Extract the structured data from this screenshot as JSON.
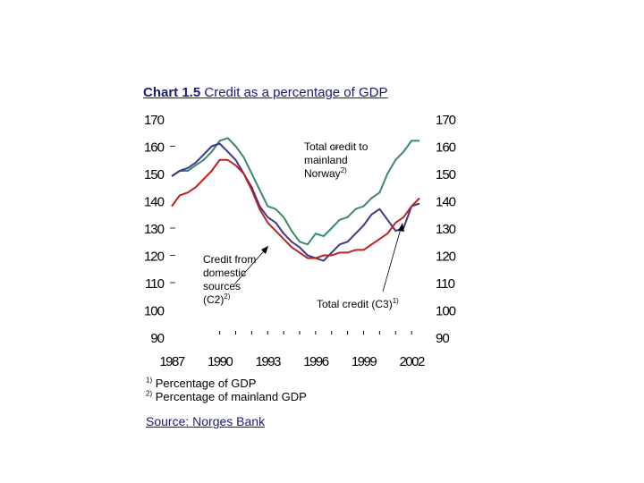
{
  "chart_data": {
    "type": "line",
    "title_bold": "Chart 1.5",
    "title_rest": "Credit as a percentage of GDP",
    "ylim": [
      90,
      170
    ],
    "yticks": [
      90,
      100,
      110,
      120,
      130,
      140,
      150,
      160,
      170
    ],
    "xlim": [
      1987,
      2003
    ],
    "xticks": [
      1987,
      1990,
      1993,
      1996,
      1999,
      2002
    ],
    "grid": false,
    "series": [
      {
        "color": "#3a8a6a",
        "x": [
          1987.0,
          1987.5,
          1988.0,
          1988.5,
          1989.0,
          1989.5,
          1990.0,
          1990.5,
          1991.0,
          1991.5,
          1992.0,
          1992.5,
          1993.0,
          1993.5,
          1994.0,
          1994.5,
          1995.0,
          1995.5,
          1996.0,
          1996.5,
          1997.0,
          1997.5,
          1998.0,
          1998.5,
          1999.0,
          1999.5,
          2000.0,
          2000.5,
          2001.0,
          2001.5,
          2002.0,
          2002.5
        ],
        "values": [
          149,
          151,
          151,
          153,
          155,
          158,
          162,
          163,
          160,
          156,
          150,
          144,
          138,
          137,
          134,
          129,
          125,
          124,
          128,
          127,
          130,
          133,
          134,
          137,
          138,
          141,
          143,
          150,
          155,
          158,
          162,
          162
        ]
      },
      {
        "color": "#3a3a8a",
        "x": [
          1987.0,
          1987.5,
          1988.0,
          1988.5,
          1989.0,
          1989.5,
          1990.0,
          1990.5,
          1991.0,
          1991.5,
          1992.0,
          1992.5,
          1993.0,
          1993.5,
          1994.0,
          1994.5,
          1995.0,
          1995.5,
          1996.0,
          1996.5,
          1997.0,
          1997.5,
          1998.0,
          1998.5,
          1999.0,
          1999.5,
          2000.0,
          2000.5,
          2001.0,
          2001.5,
          2002.0,
          2002.5
        ],
        "values": [
          149,
          151,
          152,
          154,
          157,
          160,
          161,
          158,
          155,
          150,
          145,
          138,
          134,
          132,
          128,
          125,
          123,
          120,
          119,
          118,
          121,
          124,
          125,
          128,
          131,
          135,
          137,
          133,
          129,
          130,
          138,
          139
        ]
      },
      {
        "color": "#c02020",
        "x": [
          1987.0,
          1987.5,
          1988.0,
          1988.5,
          1989.0,
          1989.5,
          1990.0,
          1990.5,
          1991.0,
          1991.5,
          1992.0,
          1992.5,
          1993.0,
          1993.5,
          1994.0,
          1994.5,
          1995.0,
          1995.5,
          1996.0,
          1996.5,
          1997.0,
          1997.5,
          1998.0,
          1998.5,
          1999.0,
          1999.5,
          2000.0,
          2000.5,
          2001.0,
          2001.5,
          2002.0,
          2002.5
        ],
        "values": [
          138,
          142,
          143,
          145,
          148,
          151,
          155,
          155,
          153,
          150,
          144,
          137,
          132,
          129,
          126,
          123,
          121,
          119,
          119,
          120,
          120,
          121,
          121,
          122,
          122,
          124,
          126,
          128,
          132,
          134,
          138,
          141
        ]
      }
    ],
    "annotations": {
      "total_credit_norway": [
        "Total credit to",
        "mainland",
        "Norway"
      ],
      "total_credit_norway_sup": "2)",
      "credit_domestic": [
        "Credit from",
        "domestic",
        "sources",
        "(C2)"
      ],
      "credit_domestic_sup": "2)",
      "total_credit_c3": "Total credit (C3)",
      "total_credit_c3_sup": "1)"
    },
    "footnotes": [
      {
        "sup": "1)",
        "text": "Percentage of GDP"
      },
      {
        "sup": "2)",
        "text": "Percentage of mainland GDP"
      }
    ],
    "source": "Source: Norges Bank"
  }
}
